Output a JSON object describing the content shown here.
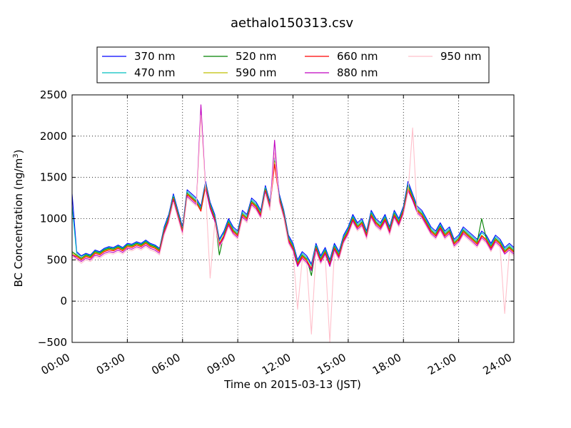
{
  "chart_data": {
    "type": "line",
    "title": "aethalo150313.csv",
    "xlabel": "Time on 2015-03-13 (JST)",
    "ylabel_main": "BC Concentration (ng/m",
    "ylabel_sup": "3",
    "ylabel_close": ")",
    "xlim": [
      0,
      24
    ],
    "ylim": [
      -500,
      2500
    ],
    "x_ticks": [
      0,
      3,
      6,
      9,
      12,
      15,
      18,
      21,
      24
    ],
    "x_tick_labels": [
      "00:00",
      "03:00",
      "06:00",
      "09:00",
      "12:00",
      "15:00",
      "18:00",
      "21:00",
      "24:00"
    ],
    "y_ticks": [
      -500,
      0,
      500,
      1000,
      1500,
      2000,
      2500
    ],
    "y_tick_labels": [
      "−500",
      "0",
      "500",
      "1000",
      "1500",
      "2000",
      "2500"
    ],
    "grid": true,
    "legend_position": "top",
    "x_hours": [
      0,
      0.25,
      0.5,
      0.75,
      1,
      1.25,
      1.5,
      1.75,
      2,
      2.25,
      2.5,
      2.75,
      3,
      3.25,
      3.5,
      3.75,
      4,
      4.25,
      4.5,
      4.75,
      5,
      5.25,
      5.5,
      5.75,
      6,
      6.25,
      6.5,
      6.75,
      7,
      7.25,
      7.5,
      7.75,
      8,
      8.25,
      8.5,
      8.75,
      9,
      9.25,
      9.5,
      9.75,
      10,
      10.25,
      10.5,
      10.75,
      11,
      11.25,
      11.5,
      11.75,
      12,
      12.25,
      12.5,
      12.75,
      13,
      13.25,
      13.5,
      13.75,
      14,
      14.25,
      14.5,
      14.75,
      15,
      15.25,
      15.5,
      15.75,
      16,
      16.25,
      16.5,
      16.75,
      17,
      17.25,
      17.5,
      17.75,
      18,
      18.25,
      18.5,
      18.75,
      19,
      19.25,
      19.5,
      19.75,
      20,
      20.25,
      20.5,
      20.75,
      21,
      21.25,
      21.5,
      21.75,
      22,
      22.25,
      22.5,
      22.75,
      23,
      23.25,
      23.5,
      23.75,
      24
    ],
    "series": [
      {
        "name": "370 nm",
        "color": "#0000ff",
        "values": [
          1300,
          600,
          550,
          580,
          560,
          620,
          600,
          640,
          660,
          650,
          680,
          650,
          700,
          690,
          720,
          700,
          740,
          700,
          680,
          640,
          900,
          1050,
          1300,
          1100,
          900,
          1350,
          1300,
          1250,
          1150,
          1450,
          1200,
          1050,
          750,
          850,
          1000,
          900,
          850,
          1100,
          1050,
          1250,
          1200,
          1100,
          1400,
          1200,
          1750,
          1300,
          1100,
          800,
          700,
          500,
          600,
          550,
          450,
          700,
          550,
          650,
          500,
          700,
          600,
          800,
          900,
          1050,
          950,
          1000,
          850,
          1100,
          1000,
          950,
          1050,
          900,
          1100,
          1000,
          1150,
          1450,
          1300,
          1150,
          1100,
          1000,
          900,
          850,
          950,
          850,
          900,
          750,
          800,
          900,
          850,
          800,
          750,
          850,
          800,
          700,
          800,
          750,
          650,
          700,
          650
        ]
      },
      {
        "name": "470 nm",
        "color": "#00bfbf",
        "values": [
          1150,
          580,
          540,
          570,
          550,
          610,
          590,
          630,
          650,
          640,
          670,
          640,
          690,
          680,
          710,
          690,
          730,
          690,
          670,
          630,
          880,
          1030,
          1280,
          1080,
          880,
          1330,
          1280,
          1230,
          1130,
          1430,
          1180,
          1030,
          730,
          830,
          980,
          880,
          830,
          1080,
          1030,
          1230,
          1180,
          1080,
          1380,
          1180,
          1720,
          1280,
          1080,
          780,
          680,
          480,
          580,
          530,
          430,
          680,
          530,
          630,
          480,
          680,
          580,
          780,
          880,
          1030,
          930,
          980,
          830,
          1080,
          980,
          930,
          1030,
          880,
          1080,
          980,
          1130,
          1420,
          1280,
          1130,
          1080,
          980,
          880,
          830,
          930,
          830,
          880,
          730,
          780,
          880,
          830,
          780,
          730,
          830,
          780,
          680,
          780,
          730,
          630,
          680,
          630
        ]
      },
      {
        "name": "520 nm",
        "color": "#008000",
        "values": [
          600,
          560,
          520,
          560,
          540,
          600,
          580,
          620,
          640,
          630,
          660,
          630,
          680,
          670,
          700,
          680,
          720,
          680,
          660,
          620,
          860,
          1010,
          1260,
          1060,
          860,
          1310,
          1260,
          1210,
          1110,
          1410,
          1160,
          1010,
          560,
          810,
          960,
          860,
          810,
          1060,
          1010,
          1210,
          1160,
          1060,
          1360,
          1160,
          1700,
          1260,
          1060,
          760,
          660,
          460,
          560,
          510,
          310,
          660,
          510,
          610,
          460,
          660,
          560,
          760,
          860,
          1010,
          910,
          960,
          810,
          1060,
          960,
          910,
          1010,
          860,
          1060,
          960,
          1110,
          1400,
          1260,
          1110,
          1060,
          960,
          860,
          810,
          910,
          810,
          860,
          710,
          760,
          860,
          810,
          760,
          710,
          1000,
          760,
          660,
          760,
          710,
          610,
          660,
          610
        ]
      },
      {
        "name": "590 nm",
        "color": "#bfbf00",
        "values": [
          580,
          550,
          510,
          550,
          530,
          590,
          570,
          610,
          630,
          620,
          650,
          620,
          670,
          660,
          690,
          670,
          710,
          670,
          650,
          610,
          850,
          1000,
          1250,
          1050,
          850,
          1300,
          1250,
          1200,
          1100,
          1400,
          1150,
          1000,
          700,
          800,
          950,
          850,
          800,
          1050,
          1000,
          1200,
          1150,
          1050,
          1350,
          1150,
          1680,
          1250,
          1050,
          750,
          650,
          450,
          550,
          500,
          400,
          650,
          500,
          600,
          450,
          650,
          550,
          750,
          850,
          1000,
          900,
          950,
          800,
          1050,
          950,
          900,
          1000,
          850,
          1050,
          950,
          1100,
          1380,
          1250,
          1100,
          1050,
          950,
          850,
          800,
          900,
          800,
          850,
          700,
          750,
          850,
          800,
          750,
          700,
          800,
          750,
          650,
          750,
          700,
          600,
          650,
          600
        ]
      },
      {
        "name": "660 nm",
        "color": "#ff0000",
        "values": [
          560,
          540,
          500,
          540,
          520,
          580,
          560,
          600,
          620,
          610,
          640,
          610,
          660,
          650,
          680,
          660,
          700,
          660,
          640,
          600,
          840,
          990,
          1240,
          1040,
          840,
          1290,
          1240,
          1190,
          1090,
          1390,
          1140,
          990,
          690,
          790,
          940,
          840,
          790,
          1040,
          990,
          1190,
          1140,
          1040,
          1340,
          1140,
          1660,
          1240,
          1040,
          740,
          640,
          440,
          540,
          490,
          390,
          640,
          490,
          590,
          440,
          640,
          540,
          740,
          840,
          990,
          890,
          940,
          790,
          1040,
          940,
          890,
          990,
          840,
          1040,
          940,
          1090,
          1360,
          1240,
          1090,
          1040,
          940,
          840,
          790,
          890,
          790,
          840,
          690,
          740,
          840,
          790,
          740,
          690,
          790,
          740,
          640,
          740,
          690,
          590,
          640,
          590
        ]
      },
      {
        "name": "880 nm",
        "color": "#bf00bf",
        "values": [
          560,
          520,
          480,
          520,
          500,
          560,
          540,
          580,
          600,
          590,
          620,
          590,
          640,
          630,
          660,
          640,
          680,
          640,
          620,
          580,
          820,
          970,
          1220,
          1020,
          820,
          1270,
          1220,
          1170,
          2380,
          1370,
          1120,
          970,
          670,
          770,
          920,
          820,
          770,
          1020,
          970,
          1170,
          1120,
          1020,
          1320,
          1120,
          1950,
          1220,
          1020,
          720,
          620,
          420,
          520,
          470,
          370,
          620,
          470,
          570,
          420,
          620,
          520,
          720,
          820,
          970,
          870,
          920,
          770,
          1020,
          920,
          870,
          970,
          820,
          1020,
          920,
          1070,
          1340,
          1220,
          1070,
          1020,
          920,
          820,
          770,
          870,
          770,
          820,
          670,
          720,
          820,
          770,
          720,
          670,
          770,
          720,
          620,
          720,
          670,
          570,
          620,
          570
        ]
      },
      {
        "name": "950 nm",
        "color": "#ffc0cb",
        "values": [
          540,
          500,
          460,
          500,
          480,
          540,
          520,
          560,
          580,
          570,
          600,
          570,
          620,
          610,
          640,
          620,
          660,
          620,
          600,
          560,
          800,
          950,
          1200,
          1000,
          800,
          1250,
          1200,
          1150,
          2250,
          1350,
          280,
          950,
          650,
          750,
          900,
          800,
          750,
          1000,
          950,
          1150,
          1100,
          1000,
          1300,
          1100,
          1800,
          1200,
          1000,
          700,
          600,
          -100,
          500,
          450,
          -400,
          600,
          450,
          550,
          -500,
          600,
          500,
          700,
          800,
          950,
          850,
          900,
          750,
          1000,
          900,
          850,
          950,
          800,
          1000,
          900,
          1050,
          1320,
          2100,
          1050,
          1000,
          900,
          800,
          750,
          850,
          750,
          800,
          650,
          700,
          800,
          750,
          700,
          650,
          750,
          700,
          600,
          700,
          650,
          -150,
          600,
          550
        ]
      }
    ]
  }
}
